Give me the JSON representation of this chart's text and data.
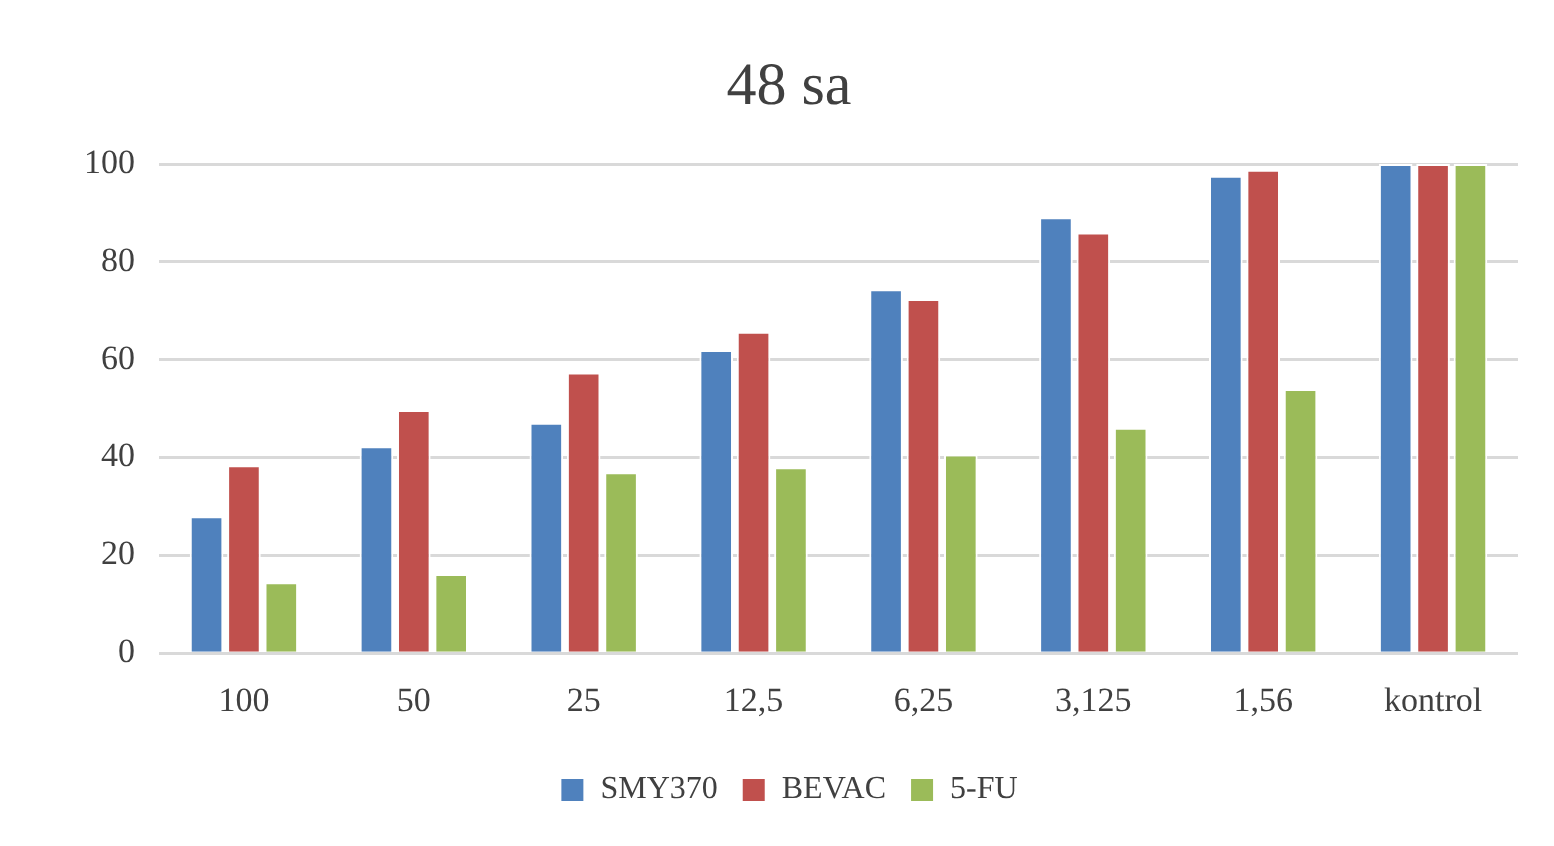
{
  "chart_data": {
    "type": "bar",
    "title": "48 sa",
    "categories": [
      "100",
      "50",
      "25",
      "12,5",
      "6,25",
      "3,125",
      "1,56",
      "kontrol"
    ],
    "series": [
      {
        "name": "SMY370",
        "color": "#4f81bd",
        "values": [
          28,
          42.3,
          47.1,
          62,
          74.4,
          89.1,
          97.6,
          100
        ]
      },
      {
        "name": "BEVAC",
        "color": "#c0504d",
        "values": [
          38.4,
          49.7,
          57.4,
          65.7,
          72.4,
          86,
          98.8,
          100
        ]
      },
      {
        "name": "5-FU",
        "color": "#9bbb59",
        "values": [
          14.5,
          16.2,
          37,
          38,
          40.6,
          46.1,
          54,
          100
        ]
      }
    ],
    "ylim": [
      0,
      100
    ],
    "yticks": [
      0,
      20,
      40,
      60,
      80,
      100
    ],
    "grid": "y",
    "legend": "bottom"
  }
}
